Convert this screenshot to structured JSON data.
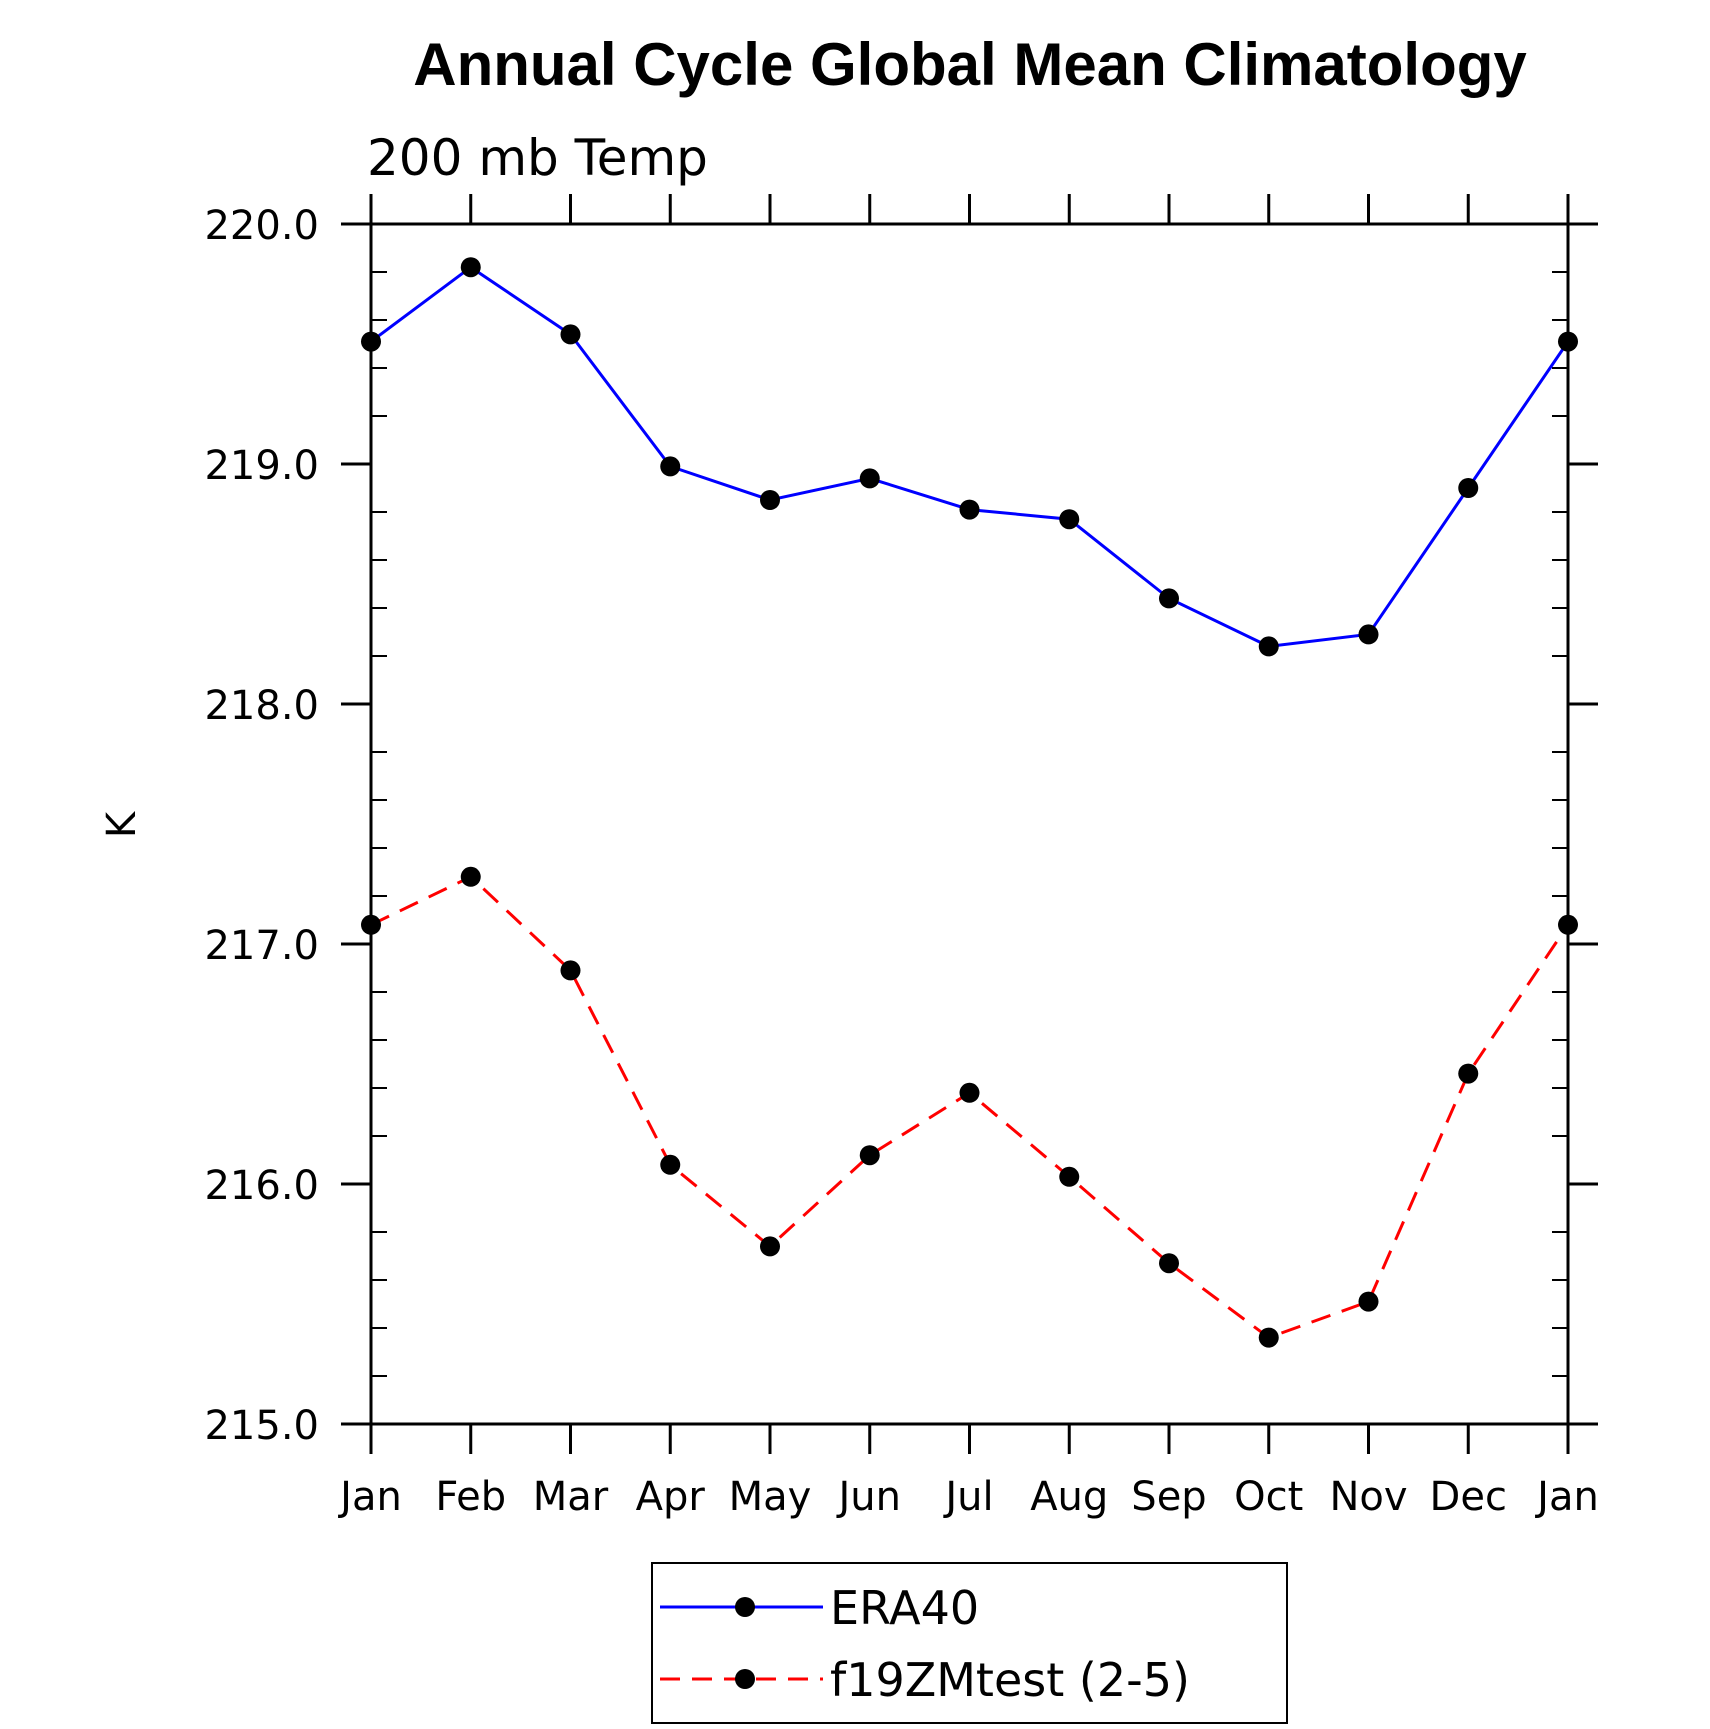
{
  "chart_data": {
    "type": "line",
    "title": "Annual Cycle Global Mean Climatology",
    "subtitle": "200 mb Temp",
    "ylabel": "K",
    "xlabel": "",
    "categories": [
      "Jan",
      "Feb",
      "Mar",
      "Apr",
      "May",
      "Jun",
      "Jul",
      "Aug",
      "Sep",
      "Oct",
      "Nov",
      "Dec",
      "Jan"
    ],
    "ylim": [
      215.0,
      220.0
    ],
    "yticks": [
      "215.0",
      "216.0",
      "217.0",
      "218.0",
      "219.0",
      "220.0"
    ],
    "series": [
      {
        "name": "ERA40",
        "color": "#0000ff",
        "dash": "solid",
        "marker": "circle",
        "values": [
          219.51,
          219.82,
          219.54,
          218.99,
          218.85,
          218.94,
          218.81,
          218.77,
          218.44,
          218.24,
          218.29,
          218.9,
          219.51
        ]
      },
      {
        "name": "f19ZMtest (2-5)",
        "color": "#ff0000",
        "dash": "dashed",
        "marker": "circle",
        "values": [
          217.08,
          217.28,
          216.89,
          216.08,
          215.74,
          216.12,
          216.38,
          216.03,
          215.67,
          215.36,
          215.51,
          216.46,
          217.08
        ]
      }
    ],
    "legend_position": "bottom-center"
  }
}
